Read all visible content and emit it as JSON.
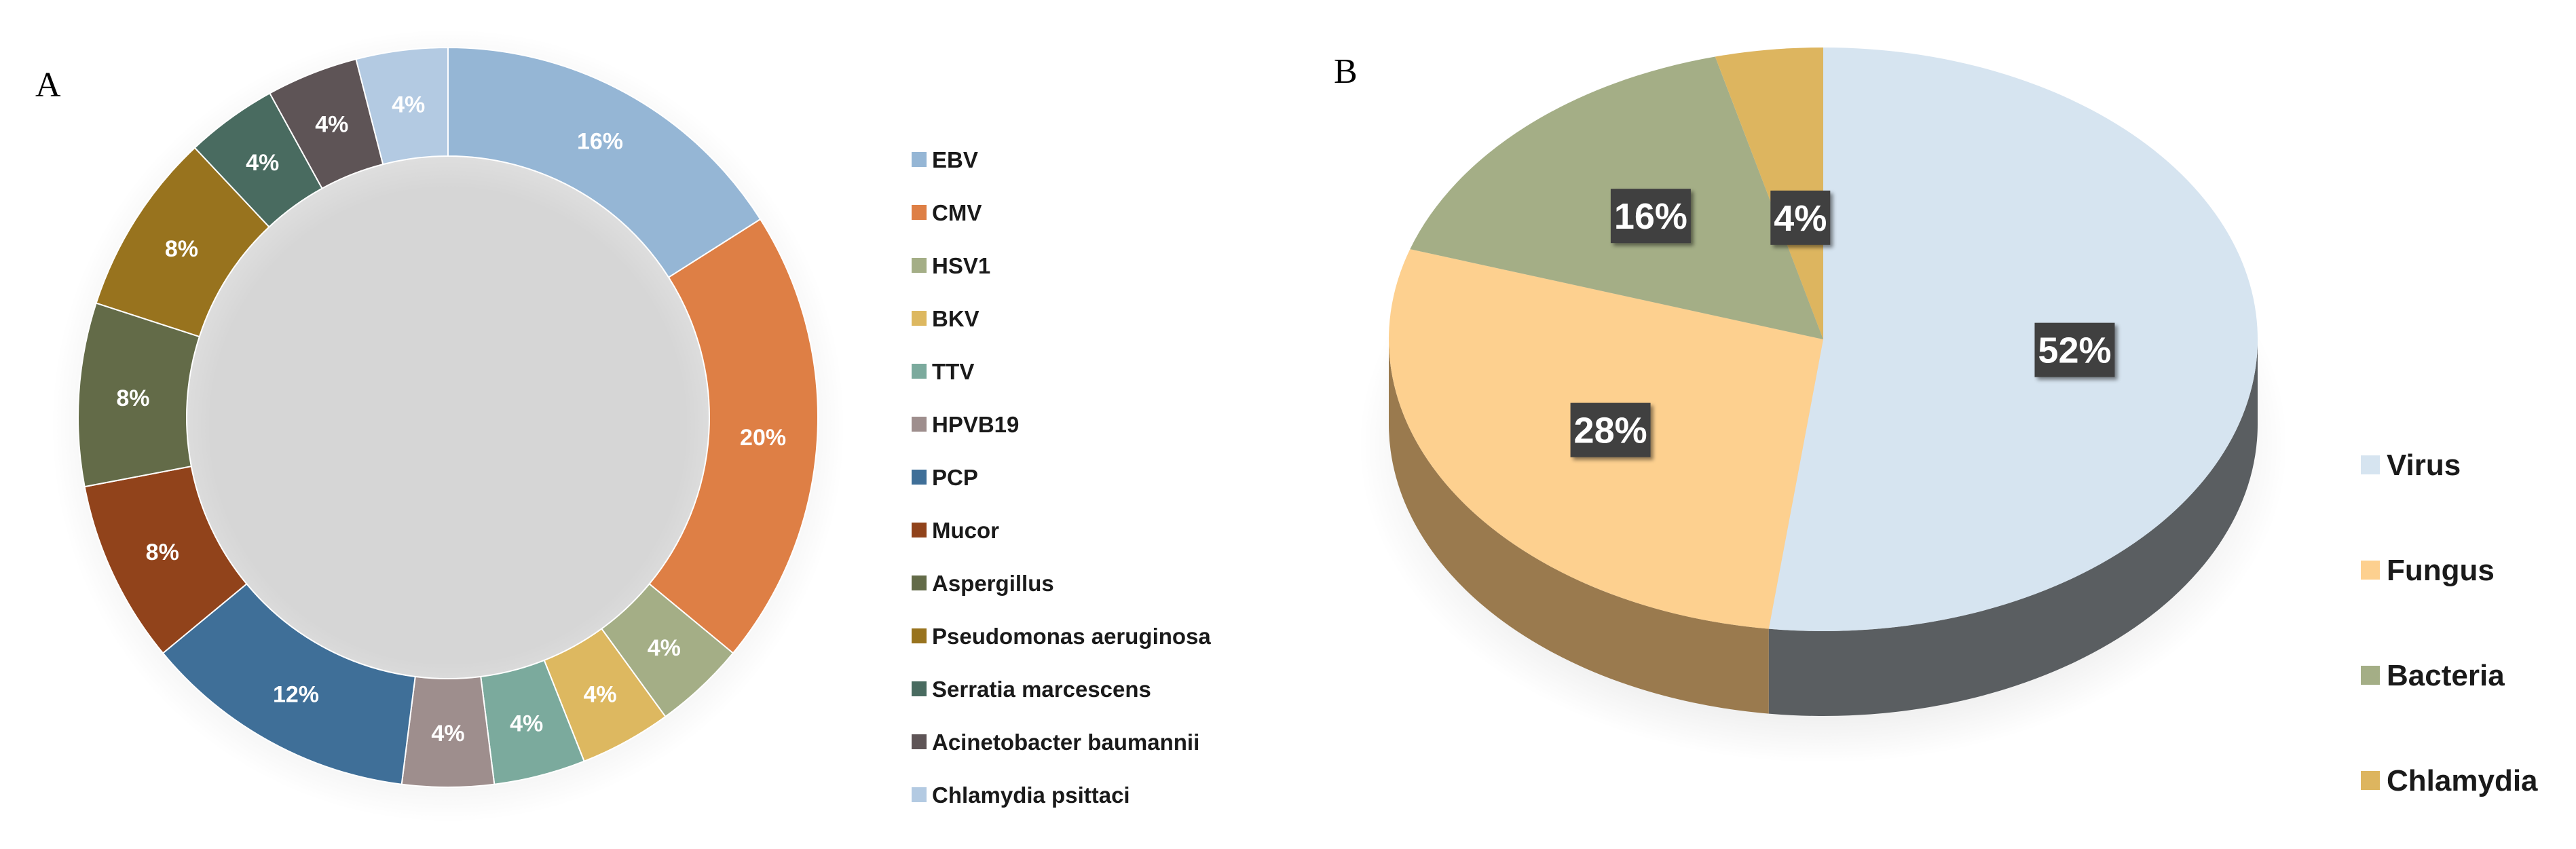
{
  "chart_data": [
    {
      "panel": "A",
      "type": "donut",
      "title": "",
      "legend_position": "right",
      "series": [
        {
          "name": "EBV",
          "value": 16,
          "label": "16%",
          "color": "#95B6D5"
        },
        {
          "name": "CMV",
          "value": 20,
          "label": "20%",
          "color": "#DE7F45"
        },
        {
          "name": "HSV1",
          "value": 4,
          "label": "4%",
          "color": "#A4AE86"
        },
        {
          "name": "BKV",
          "value": 4,
          "label": "4%",
          "color": "#DDB860"
        },
        {
          "name": "TTV",
          "value": 4,
          "label": "4%",
          "color": "#7BAA9D"
        },
        {
          "name": "HPVB19",
          "value": 4,
          "label": "4%",
          "color": "#9E8E8D"
        },
        {
          "name": "PCP",
          "value": 12,
          "label": "12%",
          "color": "#3F6F98"
        },
        {
          "name": "Mucor",
          "value": 8,
          "label": "8%",
          "color": "#91431B"
        },
        {
          "name": "Aspergillus",
          "value": 8,
          "label": "8%",
          "color": "#636B48"
        },
        {
          "name": "Pseudomonas aeruginosa",
          "value": 8,
          "label": "8%",
          "color": "#98731E"
        },
        {
          "name": "Serratia marcescens",
          "value": 4,
          "label": "4%",
          "color": "#496B60"
        },
        {
          "name": "Acinetobacter baumannii",
          "value": 4,
          "label": "4%",
          "color": "#5E5456"
        },
        {
          "name": "Chlamydia psittaci",
          "value": 4,
          "label": "4%",
          "color": "#B3CAE2"
        }
      ]
    },
    {
      "panel": "B",
      "type": "pie",
      "style": "3d",
      "title": "",
      "legend_position": "right",
      "series": [
        {
          "name": "Virus",
          "value": 52,
          "label": "52%",
          "color": "#D6E4F0",
          "side_color": "#5A5E61"
        },
        {
          "name": "Fungus",
          "value": 28,
          "label": "28%",
          "color": "#FDD08F",
          "side_color": "#9A7A4E"
        },
        {
          "name": "Bacteria",
          "value": 16,
          "label": "16%",
          "color": "#A4AE86",
          "side_color": "#6E7458"
        },
        {
          "name": "Chlamydia",
          "value": 4,
          "label": "4%",
          "color": "#DDB55F",
          "side_color": "#8E7340"
        }
      ]
    }
  ]
}
